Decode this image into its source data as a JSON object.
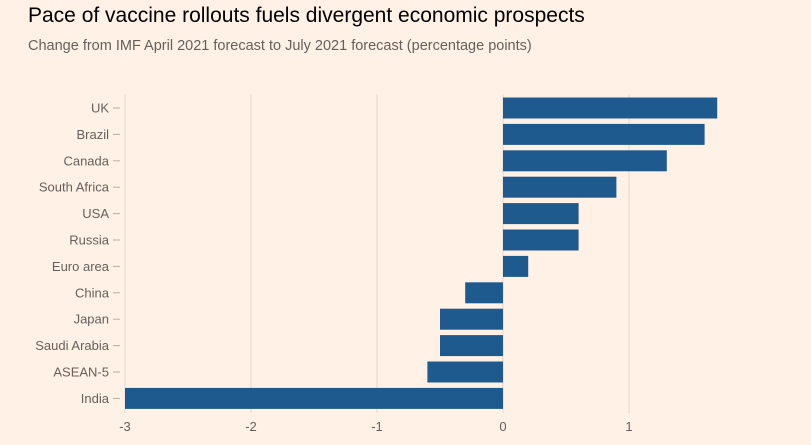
{
  "header": {
    "title": "Pace of vaccine rollouts fuels divergent economic prospects",
    "subtitle": "Change from IMF April 2021 forecast to July 2021 forecast (percentage points)"
  },
  "colors": {
    "background": "#FFF1E5",
    "bar": "#1F5A8F",
    "grid": "#E3D8CF",
    "text": "#66605C"
  },
  "chart_data": {
    "type": "bar",
    "orientation": "horizontal",
    "title": "Pace of vaccine rollouts fuels divergent economic prospects",
    "subtitle": "Change from IMF April 2021 forecast to July 2021 forecast (percentage points)",
    "categories": [
      "UK",
      "Brazil",
      "Canada",
      "South Africa",
      "USA",
      "Russia",
      "Euro area",
      "China",
      "Japan",
      "Saudi Arabia",
      "ASEAN-5",
      "India"
    ],
    "values": [
      1.7,
      1.6,
      1.3,
      0.9,
      0.6,
      0.6,
      0.2,
      -0.3,
      -0.5,
      -0.5,
      -0.6,
      -3.0
    ],
    "xlim": [
      -3,
      2
    ],
    "xticks": [
      -3,
      -2,
      -1,
      0,
      1
    ],
    "tick_labels": [
      "-3",
      "-2",
      "-1",
      "0",
      "1"
    ],
    "xlabel": "",
    "ylabel": "",
    "grid": true,
    "legend": "none"
  }
}
